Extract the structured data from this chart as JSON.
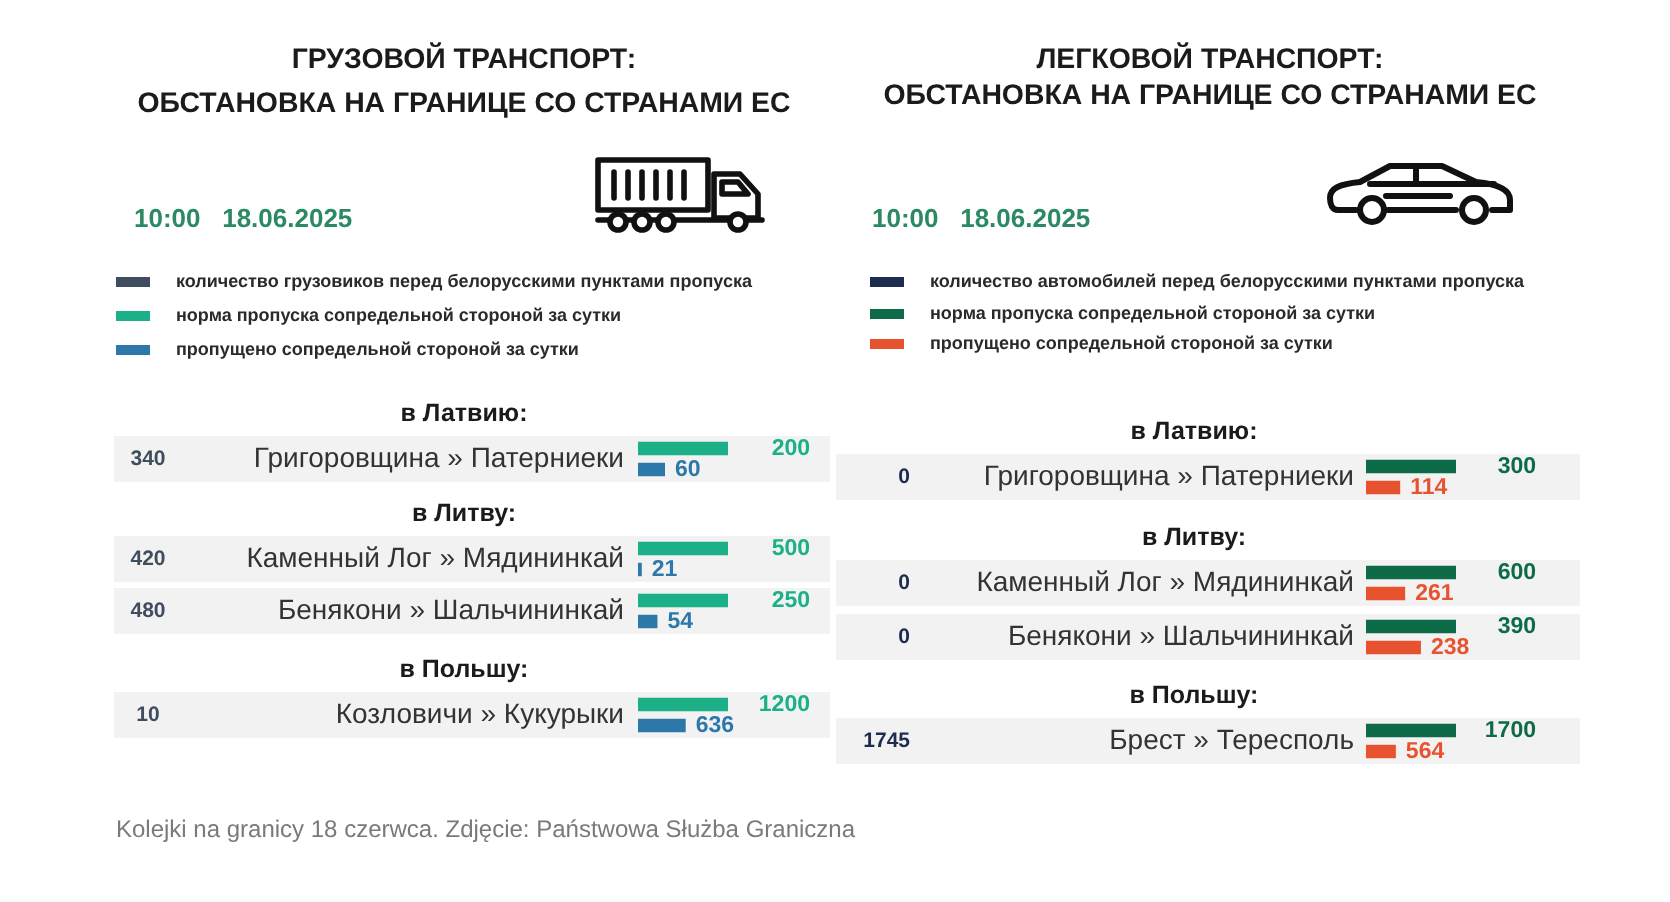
{
  "chart_data": [
    {
      "type": "other",
      "title": "ГРУЗОВОЙ ТРАНСПОРТ:\nОБСТАНОВКА НА ГРАНИЦЕ СО СТРАНАМИ ЕС",
      "subtitle": "10:00   18.06.2025"
    },
    {
      "type": "bar",
      "orientation": "horizontal",
      "title": "в Латвию:",
      "legend": "top left",
      "annotations": [
        "340"
      ],
      "categories": [
        "Григоровщина » Патерниеки"
      ],
      "series": [
        {
          "name": "количество грузовиков перед белорусскими пунктами пропуска",
          "color": "#3f4d5e",
          "values": [
            null
          ]
        },
        {
          "name": "норма пропуска сопредельной стороной за сутки",
          "color": "#1bb087",
          "values": [
            200
          ]
        },
        {
          "name": "пропущено сопредельной стороной за сутки",
          "color": "#2c78a9",
          "values": [
            60
          ]
        }
      ],
      "tick_labels": "y",
      "data_labels": true
    },
    {
      "type": "bar",
      "orientation": "horizontal",
      "title": "в Литву:",
      "annotations": [
        "420"
      ],
      "categories": [
        "Каменный Лог » Мядининкай"
      ],
      "series": [
        {
          "color": "#1bb087",
          "values": [
            500
          ]
        },
        {
          "color": "#2c78a9",
          "values": [
            21
          ]
        }
      ],
      "tick_labels": "y",
      "data_labels": true
    },
    {
      "type": "bar",
      "orientation": "horizontal",
      "annotations": [
        "480"
      ],
      "categories": [
        "Бенякони » Шальчининкай"
      ],
      "series": [
        {
          "color": "#1bb087",
          "values": [
            250
          ]
        },
        {
          "color": "#2c78a9",
          "values": [
            54
          ]
        }
      ],
      "tick_labels": "y",
      "data_labels": true
    },
    {
      "type": "bar",
      "orientation": "horizontal",
      "title": "в Польшу:",
      "annotations": [
        "10"
      ],
      "categories": [
        "Козловичи » Кукурыки"
      ],
      "series": [
        {
          "color": "#1bb087",
          "values": [
            1200
          ]
        },
        {
          "color": "#2c78a9",
          "values": [
            636
          ]
        }
      ],
      "tick_labels": "y",
      "data_labels": true
    },
    {
      "type": "other",
      "title": "ЛЕГКОВОЙ ТРАНСПОРТ:\nОБСТАНОВКА НА ГРАНИЦЕ СО СТРАНАМИ ЕС",
      "subtitle": "10:00   18.06.2025"
    },
    {
      "type": "bar",
      "orientation": "horizontal",
      "title": "в Латвию:",
      "legend": "top left",
      "annotations": [
        "0"
      ],
      "categories": [
        "Григоровщина » Патерниеки"
      ],
      "series": [
        {
          "name": "количество автомобилей перед белорусскими пунктами пропуска",
          "color": "#1e2d4f",
          "values": [
            null
          ]
        },
        {
          "name": "норма пропуска сопредельной стороной за сутки",
          "color": "#0d6b47",
          "values": [
            300
          ]
        },
        {
          "name": "пропущено сопредельной стороной за сутки",
          "color": "#e8532f",
          "values": [
            114
          ]
        }
      ],
      "tick_labels": "y",
      "data_labels": true
    },
    {
      "type": "bar",
      "orientation": "horizontal",
      "title": "в Литву:",
      "annotations": [
        "0"
      ],
      "categories": [
        "Каменный Лог » Мядининкай"
      ],
      "series": [
        {
          "color": "#0d6b47",
          "values": [
            600
          ]
        },
        {
          "color": "#e8532f",
          "values": [
            261
          ]
        }
      ],
      "tick_labels": "y",
      "data_labels": true
    },
    {
      "type": "bar",
      "orientation": "horizontal",
      "annotations": [
        "0"
      ],
      "categories": [
        "Бенякони » Шальчининкай"
      ],
      "series": [
        {
          "color": "#0d6b47",
          "values": [
            390
          ]
        },
        {
          "color": "#e8532f",
          "values": [
            238
          ]
        }
      ],
      "tick_labels": "y",
      "data_labels": true
    },
    {
      "type": "bar",
      "orientation": "horizontal",
      "title": "в Польшу:",
      "annotations": [
        "1745"
      ],
      "categories": [
        "Брест » Тересполь"
      ],
      "series": [
        {
          "color": "#0d6b47",
          "values": [
            1700
          ]
        },
        {
          "color": "#e8532f",
          "values": [
            564
          ]
        }
      ],
      "tick_labels": "y",
      "data_labels": true
    },
    {
      "type": "other",
      "annotations": [
        "Kolejki na granicy 18 czerwca. Zdjęcie: Państwowa Służba Graniczna"
      ]
    }
  ]
}
